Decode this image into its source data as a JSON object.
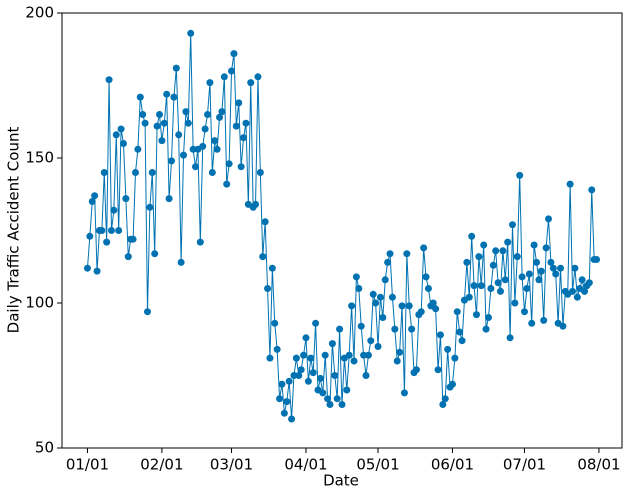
{
  "chart_data": {
    "type": "line",
    "xlabel": "Date",
    "ylabel": "Daily Traffic Accident Count",
    "color": "#0072b2",
    "x": [
      "01/01",
      "01/02",
      "01/03",
      "01/04",
      "01/05",
      "01/06",
      "01/07",
      "01/08",
      "01/09",
      "01/10",
      "01/11",
      "01/12",
      "01/13",
      "01/14",
      "01/15",
      "01/16",
      "01/17",
      "01/18",
      "01/19",
      "01/20",
      "01/21",
      "01/22",
      "01/23",
      "01/24",
      "01/25",
      "01/26",
      "01/27",
      "01/28",
      "01/29",
      "01/30",
      "01/31",
      "02/01",
      "02/02",
      "02/03",
      "02/04",
      "02/05",
      "02/06",
      "02/07",
      "02/08",
      "02/09",
      "02/10",
      "02/11",
      "02/12",
      "02/13",
      "02/14",
      "02/15",
      "02/16",
      "02/17",
      "02/18",
      "02/19",
      "02/20",
      "02/21",
      "02/22",
      "02/23",
      "02/24",
      "02/25",
      "02/26",
      "02/27",
      "02/28",
      "02/29",
      "03/01",
      "03/02",
      "03/03",
      "03/04",
      "03/05",
      "03/06",
      "03/07",
      "03/08",
      "03/09",
      "03/10",
      "03/11",
      "03/12",
      "03/13",
      "03/14",
      "03/15",
      "03/16",
      "03/17",
      "03/18",
      "03/19",
      "03/20",
      "03/21",
      "03/22",
      "03/23",
      "03/24",
      "03/25",
      "03/26",
      "03/27",
      "03/28",
      "03/29",
      "03/30",
      "03/31",
      "04/01",
      "04/02",
      "04/03",
      "04/04",
      "04/05",
      "04/06",
      "04/07",
      "04/08",
      "04/09",
      "04/10",
      "04/11",
      "04/12",
      "04/13",
      "04/14",
      "04/15",
      "04/16",
      "04/17",
      "04/18",
      "04/19",
      "04/20",
      "04/21",
      "04/22",
      "04/23",
      "04/24",
      "04/25",
      "04/26",
      "04/27",
      "04/28",
      "04/29",
      "04/30",
      "05/01",
      "05/02",
      "05/03",
      "05/04",
      "05/05",
      "05/06",
      "05/07",
      "05/08",
      "05/09",
      "05/10",
      "05/11",
      "05/12",
      "05/13",
      "05/14",
      "05/15",
      "05/16",
      "05/17",
      "05/18",
      "05/19",
      "05/20",
      "05/21",
      "05/22",
      "05/23",
      "05/24",
      "05/25",
      "05/26",
      "05/27",
      "05/28",
      "05/29",
      "05/30",
      "05/31",
      "06/01",
      "06/02",
      "06/03",
      "06/04",
      "06/05",
      "06/06",
      "06/07",
      "06/08",
      "06/09",
      "06/10",
      "06/11",
      "06/12",
      "06/13",
      "06/14",
      "06/15",
      "06/16",
      "06/17",
      "06/18",
      "06/19",
      "06/20",
      "06/21",
      "06/22",
      "06/23",
      "06/24",
      "06/25",
      "06/26",
      "06/27",
      "06/28",
      "06/29",
      "06/30",
      "07/01",
      "07/02",
      "07/03",
      "07/04",
      "07/05",
      "07/06",
      "07/07",
      "07/08",
      "07/09",
      "07/10",
      "07/11",
      "07/12",
      "07/13",
      "07/14",
      "07/15",
      "07/16",
      "07/17",
      "07/18",
      "07/19",
      "07/20",
      "07/21",
      "07/22",
      "07/23",
      "07/24",
      "07/25",
      "07/26",
      "07/27",
      "07/28",
      "07/29",
      "07/30",
      "07/31"
    ],
    "values": [
      112,
      123,
      135,
      137,
      111,
      125,
      125,
      145,
      121,
      177,
      125,
      132,
      158,
      125,
      160,
      155,
      136,
      116,
      122,
      122,
      145,
      153,
      171,
      165,
      162,
      97,
      133,
      145,
      117,
      161,
      165,
      156,
      162,
      172,
      136,
      149,
      171,
      181,
      158,
      114,
      151,
      166,
      162,
      193,
      153,
      147,
      153,
      121,
      154,
      160,
      165,
      176,
      145,
      156,
      153,
      164,
      166,
      178,
      141,
      148,
      180,
      186,
      161,
      169,
      147,
      157,
      162,
      134,
      176,
      133,
      134,
      178,
      145,
      116,
      128,
      105,
      81,
      112,
      93,
      84,
      67,
      72,
      62,
      66,
      73,
      60,
      75,
      81,
      75,
      77,
      82,
      88,
      73,
      81,
      76,
      93,
      70,
      74,
      69,
      82,
      67,
      65,
      86,
      75,
      67,
      91,
      65,
      81,
      70,
      82,
      99,
      80,
      109,
      105,
      92,
      82,
      75,
      82,
      87,
      103,
      100,
      85,
      102,
      95,
      108,
      114,
      117,
      102,
      91,
      80,
      83,
      99,
      69,
      117,
      99,
      91,
      76,
      77,
      96,
      97,
      119,
      109,
      105,
      99,
      100,
      98,
      77,
      89,
      65,
      67,
      84,
      71,
      72,
      81,
      97,
      90,
      87,
      101,
      114,
      102,
      123,
      106,
      96,
      116,
      106,
      120,
      91,
      95,
      105,
      113,
      118,
      107,
      104,
      118,
      108,
      121,
      88,
      127,
      100,
      116,
      144,
      109,
      97,
      105,
      110,
      93,
      120,
      114,
      108,
      111,
      94,
      119,
      129,
      114,
      112,
      110,
      93,
      112,
      92,
      104,
      103,
      141,
      104,
      112,
      102,
      105,
      108,
      104,
      106,
      107,
      139,
      115,
      115
    ],
    "xticks": [
      "01/01",
      "02/01",
      "03/01",
      "04/01",
      "05/01",
      "06/01",
      "07/01",
      "08/01"
    ],
    "ylim": [
      50,
      200
    ],
    "yticks": [
      50,
      100,
      150,
      200
    ]
  }
}
